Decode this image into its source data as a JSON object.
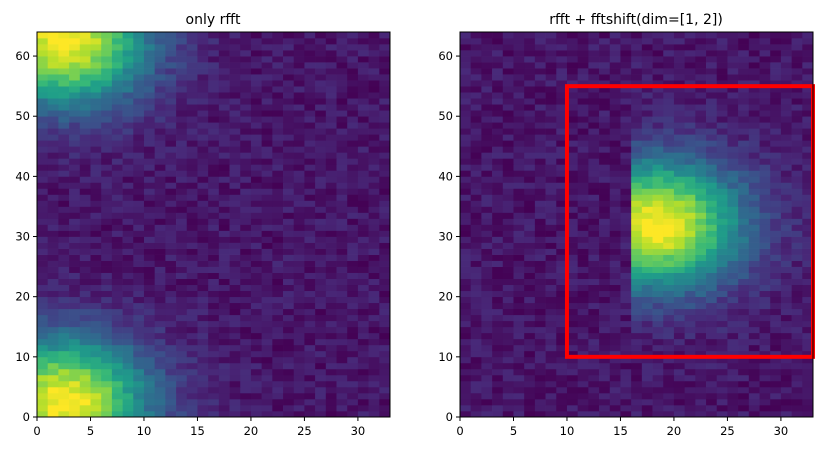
{
  "chart_data": [
    {
      "type": "heatmap",
      "title": "only rfft",
      "xlabel": "",
      "ylabel": "",
      "xlim": [
        0,
        33
      ],
      "ylim": [
        0,
        64
      ],
      "xticks": [
        0,
        5,
        10,
        15,
        20,
        25,
        30
      ],
      "yticks": [
        0,
        10,
        20,
        30,
        40,
        50,
        60
      ],
      "colormap": "viridis",
      "grid": false,
      "description_of_values": "magnitude spectrum: bright blobs at kx 0-8 near ky 0-8 and ky 56-64, fading to background beyond kx 15",
      "blobs": [
        {
          "x": 2.5,
          "y": 2.5,
          "sx": 5.5,
          "sy": 7.5,
          "amp": 0.95
        },
        {
          "x": 2.5,
          "y": 62.5,
          "sx": 5.5,
          "sy": 7.5,
          "amp": 0.95
        }
      ],
      "background": 0.06
    },
    {
      "type": "heatmap",
      "title": "rfft + fftshift(dim=[1, 2])",
      "xlabel": "",
      "ylabel": "",
      "xlim": [
        0,
        33
      ],
      "ylim": [
        0,
        64
      ],
      "xticks": [
        0,
        5,
        10,
        15,
        20,
        25,
        30
      ],
      "yticks": [
        0,
        10,
        20,
        30,
        40,
        50,
        60
      ],
      "colormap": "viridis",
      "grid": false,
      "description_of_values": "shifted spectrum: bright blob centered near (19, 32); sharp left edge at x=16",
      "blobs": [
        {
          "x": 18.5,
          "y": 32,
          "sx": 5.5,
          "sy": 7.5,
          "amp": 0.95
        }
      ],
      "sharp_left_edge_x": 16,
      "background": 0.06,
      "annotation_rectangle": {
        "x0": 10,
        "x1": 33,
        "y0": 10,
        "y1": 55,
        "color": "#ff0000"
      }
    }
  ]
}
